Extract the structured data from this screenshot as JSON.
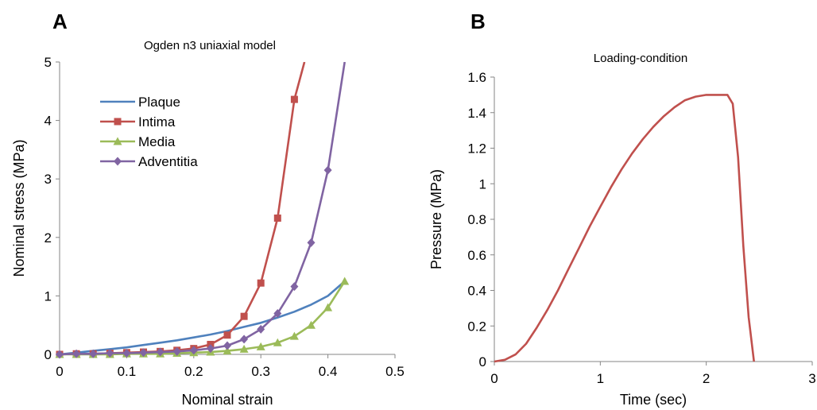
{
  "panels": {
    "a": "A",
    "b": "B"
  },
  "chart_data": [
    {
      "type": "line",
      "panel": "A",
      "title": "Ogden n3 uniaxial model",
      "xlabel": "Nominal strain",
      "ylabel": "Nominal stress (MPa)",
      "xlim": [
        0,
        0.5
      ],
      "ylim": [
        0,
        5
      ],
      "xticks": [
        "0",
        "0.1",
        "0.2",
        "0.3",
        "0.4",
        "0.5"
      ],
      "yticks": [
        "0",
        "1",
        "2",
        "3",
        "4",
        "5"
      ],
      "grid": false,
      "legend_position": "upper-left",
      "series": [
        {
          "name": "Plaque",
          "color": "#4f81bd",
          "marker": "none",
          "x": [
            0,
            0.025,
            0.05,
            0.075,
            0.1,
            0.125,
            0.15,
            0.175,
            0.2,
            0.225,
            0.25,
            0.275,
            0.3,
            0.325,
            0.35,
            0.375,
            0.4,
            0.425
          ],
          "y": [
            0,
            0.03,
            0.06,
            0.09,
            0.12,
            0.16,
            0.2,
            0.24,
            0.29,
            0.34,
            0.4,
            0.47,
            0.54,
            0.63,
            0.73,
            0.85,
            1.0,
            1.25
          ]
        },
        {
          "name": "Intima",
          "color": "#c0504d",
          "marker": "square",
          "x": [
            0,
            0.025,
            0.05,
            0.075,
            0.1,
            0.125,
            0.15,
            0.175,
            0.2,
            0.225,
            0.25,
            0.275,
            0.3,
            0.325,
            0.35,
            0.365
          ],
          "y": [
            0,
            0.01,
            0.01,
            0.02,
            0.03,
            0.04,
            0.05,
            0.07,
            0.1,
            0.17,
            0.33,
            0.65,
            1.22,
            2.33,
            4.36,
            5.0
          ],
          "markers_count": 15
        },
        {
          "name": "Media",
          "color": "#9bbb59",
          "marker": "triangle",
          "x": [
            0,
            0.025,
            0.05,
            0.075,
            0.1,
            0.125,
            0.15,
            0.175,
            0.2,
            0.225,
            0.25,
            0.275,
            0.3,
            0.325,
            0.35,
            0.375,
            0.4,
            0.425
          ],
          "y": [
            0,
            0,
            0,
            0,
            0.01,
            0.01,
            0.01,
            0.02,
            0.03,
            0.04,
            0.06,
            0.09,
            0.13,
            0.2,
            0.31,
            0.5,
            0.8,
            1.25
          ]
        },
        {
          "name": "Adventitia",
          "color": "#8064a2",
          "marker": "diamond",
          "x": [
            0,
            0.025,
            0.05,
            0.075,
            0.1,
            0.125,
            0.15,
            0.175,
            0.2,
            0.225,
            0.25,
            0.275,
            0.3,
            0.325,
            0.35,
            0.375,
            0.4,
            0.425
          ],
          "y": [
            0,
            0.01,
            0.01,
            0.02,
            0.02,
            0.03,
            0.04,
            0.05,
            0.07,
            0.1,
            0.15,
            0.26,
            0.43,
            0.7,
            1.16,
            1.91,
            3.15,
            5.0
          ],
          "markers_count": 17
        }
      ]
    },
    {
      "type": "line",
      "panel": "B",
      "title": "Loading-condition",
      "xlabel": "Time (sec)",
      "ylabel": "Pressure (MPa)",
      "xlim": [
        0,
        3
      ],
      "ylim": [
        0,
        1.6
      ],
      "xticks": [
        "0",
        "1",
        "2",
        "3"
      ],
      "yticks": [
        "0",
        "0.2",
        "0.4",
        "0.6",
        "0.8",
        "1",
        "1.2",
        "1.4",
        "1.6"
      ],
      "grid": false,
      "series": [
        {
          "color": "#c0504d",
          "x": [
            0,
            0.1,
            0.2,
            0.3,
            0.4,
            0.5,
            0.6,
            0.7,
            0.8,
            0.9,
            1.0,
            1.1,
            1.2,
            1.3,
            1.4,
            1.5,
            1.6,
            1.7,
            1.8,
            1.9,
            2.0,
            2.1,
            2.2,
            2.25,
            2.3,
            2.35,
            2.4,
            2.45
          ],
          "y": [
            0,
            0.01,
            0.04,
            0.1,
            0.19,
            0.29,
            0.4,
            0.52,
            0.64,
            0.76,
            0.87,
            0.98,
            1.08,
            1.17,
            1.25,
            1.32,
            1.38,
            1.43,
            1.47,
            1.49,
            1.5,
            1.5,
            1.5,
            1.45,
            1.15,
            0.65,
            0.25,
            0
          ]
        }
      ]
    }
  ]
}
